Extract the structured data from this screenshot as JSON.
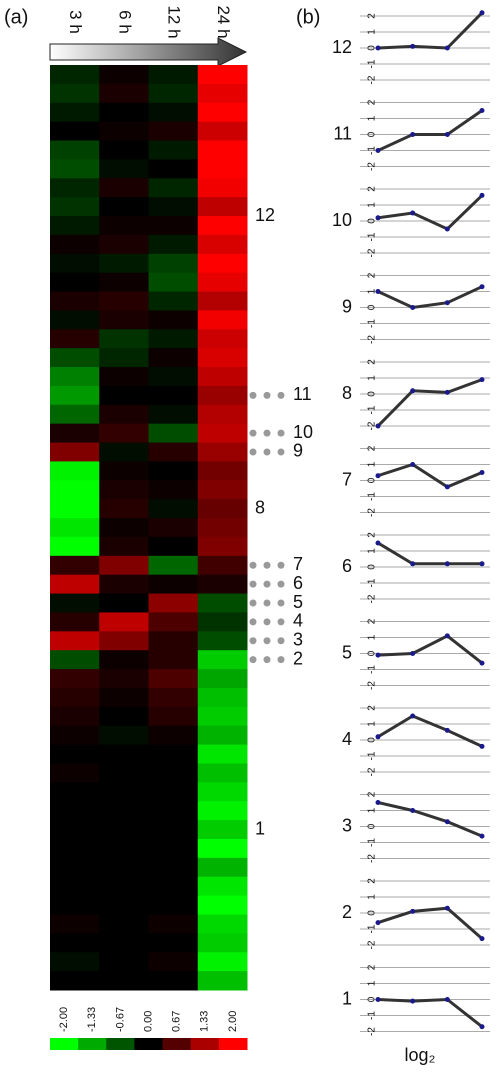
{
  "panel_labels": [
    "(a)",
    "(b)"
  ],
  "footer_label": "log₂",
  "chart_data": [
    {
      "type": "heatmap",
      "categories": [
        "3 h",
        "6 h",
        "12 h",
        "24 h"
      ],
      "colors": {
        "low": "#00ff00",
        "mid": "#000000",
        "high": "#ff0000"
      },
      "colorbar": {
        "ticks": [
          {
            "value": -2,
            "label": "-2.00"
          },
          {
            "value": -1.33,
            "label": "-1.33"
          },
          {
            "value": -0.67,
            "label": "-0.67"
          },
          {
            "value": 0,
            "label": "0.00"
          },
          {
            "value": 0.67,
            "label": "0.67"
          },
          {
            "value": 1.33,
            "label": "1.33"
          },
          {
            "value": 2,
            "label": "2.00"
          }
        ]
      },
      "clusters": [
        {
          "label": "12",
          "rows": [
            [
              -0.3,
              0.1,
              -0.2,
              2
            ],
            [
              -0.4,
              0.2,
              -0.3,
              1.8
            ],
            [
              -0.2,
              0,
              -0.1,
              2.2
            ],
            [
              0,
              0.1,
              0.2,
              1.6
            ],
            [
              -0.5,
              0,
              -0.2,
              2.4
            ],
            [
              -0.6,
              -0.1,
              0,
              2.5
            ],
            [
              -0.3,
              0.2,
              -0.3,
              1.9
            ],
            [
              -0.4,
              0,
              -0.1,
              1.5
            ],
            [
              -0.2,
              0.1,
              0.1,
              2
            ],
            [
              0.1,
              0.2,
              -0.2,
              1.7
            ],
            [
              -0.1,
              -0.2,
              -0.5,
              2.1
            ],
            [
              0,
              0.1,
              -0.6,
              1.8
            ],
            [
              0.2,
              0.3,
              -0.3,
              1.4
            ],
            [
              -0.1,
              0.2,
              0.1,
              1.9
            ],
            [
              0.3,
              -0.4,
              -0.2,
              1.6
            ],
            [
              -0.6,
              -0.3,
              0.1,
              1.7
            ]
          ]
        },
        {
          "label": "11",
          "rows": [
            [
              -1,
              0.1,
              -0.1,
              1.5
            ],
            [
              -1.2,
              0,
              0,
              1.2
            ],
            [
              -0.8,
              0.2,
              -0.1,
              1.4
            ]
          ]
        },
        {
          "label": "10",
          "rows": [
            [
              0.2,
              0.4,
              -0.6,
              1.5
            ]
          ]
        },
        {
          "label": "9",
          "rows": [
            [
              1,
              -0.1,
              0.3,
              1.2
            ]
          ]
        },
        {
          "label": "8",
          "rows": [
            [
              -1.9,
              0.1,
              0,
              0.9
            ],
            [
              -2.2,
              0.2,
              0.1,
              1
            ],
            [
              -2.5,
              0.3,
              -0.1,
              0.8
            ],
            [
              -1.8,
              0.1,
              0.2,
              0.9
            ],
            [
              -2,
              0.2,
              0,
              1
            ]
          ]
        },
        {
          "label": "7",
          "rows": [
            [
              0.4,
              1,
              -0.8,
              0.5
            ]
          ]
        },
        {
          "label": "6",
          "rows": [
            [
              1.5,
              0.2,
              0.1,
              0.2
            ]
          ]
        },
        {
          "label": "5",
          "rows": [
            [
              -0.1,
              0,
              1.1,
              -0.6
            ]
          ]
        },
        {
          "label": "4",
          "rows": [
            [
              0.3,
              1.5,
              0.6,
              -0.4
            ]
          ]
        },
        {
          "label": "3",
          "rows": [
            [
              1.5,
              1,
              0.3,
              -0.6
            ]
          ]
        },
        {
          "label": "2",
          "rows": [
            [
              -0.6,
              0.1,
              0.3,
              -1.6
            ]
          ]
        },
        {
          "label": "1",
          "rows": [
            [
              0.4,
              0.2,
              0.6,
              -1.3
            ],
            [
              0.3,
              0.1,
              0.4,
              -1.5
            ],
            [
              0.2,
              0,
              0.3,
              -1.6
            ],
            [
              0.1,
              -0.1,
              0.1,
              -1.4
            ],
            [
              0,
              0,
              0,
              -1.8
            ],
            [
              0.1,
              0,
              0,
              -1.5
            ],
            [
              0,
              0,
              0,
              -1.7
            ],
            [
              0,
              0,
              0,
              -1.9
            ],
            [
              0,
              0,
              0,
              -1.6
            ],
            [
              0,
              0,
              0,
              -2
            ],
            [
              0,
              0,
              0,
              -1.4
            ],
            [
              0,
              0,
              0,
              -1.8
            ],
            [
              0,
              0,
              0,
              -2.2
            ],
            [
              0.1,
              0,
              0.1,
              -1.7
            ],
            [
              0,
              0,
              0,
              -1.6
            ],
            [
              -0.1,
              0,
              0.1,
              -1.9
            ],
            [
              0,
              0,
              0,
              -1.5
            ]
          ]
        }
      ]
    },
    {
      "type": "line",
      "title": "12",
      "values": [
        0,
        0.1,
        0,
        2.2
      ],
      "ylim": [
        -2.5,
        2.5
      ],
      "yticks": [
        -2,
        -1,
        0,
        1,
        2
      ],
      "color": "#333333",
      "marker_color": "#1a1a8c"
    },
    {
      "type": "line",
      "title": "11",
      "values": [
        -1,
        0,
        0,
        1.5
      ],
      "ylim": [
        -2.5,
        2.5
      ],
      "yticks": [
        -2,
        -1,
        0,
        1,
        2
      ],
      "color": "#333333",
      "marker_color": "#1a1a8c"
    },
    {
      "type": "line",
      "title": "10",
      "values": [
        0.2,
        0.5,
        -0.5,
        1.6
      ],
      "ylim": [
        -2.5,
        2.5
      ],
      "yticks": [
        -2,
        -1,
        0,
        1,
        2
      ],
      "color": "#333333",
      "marker_color": "#1a1a8c"
    },
    {
      "type": "line",
      "title": "9",
      "values": [
        1,
        0,
        0.3,
        1.3
      ],
      "ylim": [
        -2.5,
        2.5
      ],
      "yticks": [
        -2,
        -1,
        0,
        1,
        2
      ],
      "color": "#333333",
      "marker_color": "#1a1a8c"
    },
    {
      "type": "line",
      "title": "8",
      "values": [
        -2,
        0.2,
        0.1,
        0.9
      ],
      "ylim": [
        -2.5,
        2.5
      ],
      "yticks": [
        -2,
        -1,
        0,
        1,
        2
      ],
      "color": "#333333",
      "marker_color": "#1a1a8c"
    },
    {
      "type": "line",
      "title": "7",
      "values": [
        0.3,
        1,
        -0.4,
        0.5
      ],
      "ylim": [
        -2.5,
        2.5
      ],
      "yticks": [
        -2,
        -1,
        0,
        1,
        2
      ],
      "color": "#333333",
      "marker_color": "#1a1a8c"
    },
    {
      "type": "line",
      "title": "6",
      "values": [
        1.5,
        0.2,
        0.2,
        0.2
      ],
      "ylim": [
        -2.5,
        2.5
      ],
      "yticks": [
        -2,
        -1,
        0,
        1,
        2
      ],
      "color": "#333333",
      "marker_color": "#1a1a8c"
    },
    {
      "type": "line",
      "title": "5",
      "values": [
        -0.1,
        0,
        1.1,
        -0.6
      ],
      "ylim": [
        -2.5,
        2.5
      ],
      "yticks": [
        -2,
        -1,
        0,
        1,
        2
      ],
      "color": "#333333",
      "marker_color": "#1a1a8c"
    },
    {
      "type": "line",
      "title": "4",
      "values": [
        0.2,
        1.5,
        0.6,
        -0.4
      ],
      "ylim": [
        -2.5,
        2.5
      ],
      "yticks": [
        -2,
        -1,
        0,
        1,
        2
      ],
      "color": "#333333",
      "marker_color": "#1a1a8c"
    },
    {
      "type": "line",
      "title": "3",
      "values": [
        1.5,
        1,
        0.3,
        -0.6
      ],
      "ylim": [
        -2.5,
        2.5
      ],
      "yticks": [
        -2,
        -1,
        0,
        1,
        2
      ],
      "color": "#333333",
      "marker_color": "#1a1a8c"
    },
    {
      "type": "line",
      "title": "2",
      "values": [
        -0.6,
        0.1,
        0.3,
        -1.6
      ],
      "ylim": [
        -2.5,
        2.5
      ],
      "yticks": [
        -2,
        -1,
        0,
        1,
        2
      ],
      "color": "#333333",
      "marker_color": "#1a1a8c"
    },
    {
      "type": "line",
      "title": "1",
      "values": [
        0,
        -0.1,
        0,
        -1.7
      ],
      "ylim": [
        -2.5,
        2.5
      ],
      "yticks": [
        -2,
        -1,
        0,
        1,
        2
      ],
      "color": "#333333",
      "marker_color": "#1a1a8c"
    }
  ]
}
